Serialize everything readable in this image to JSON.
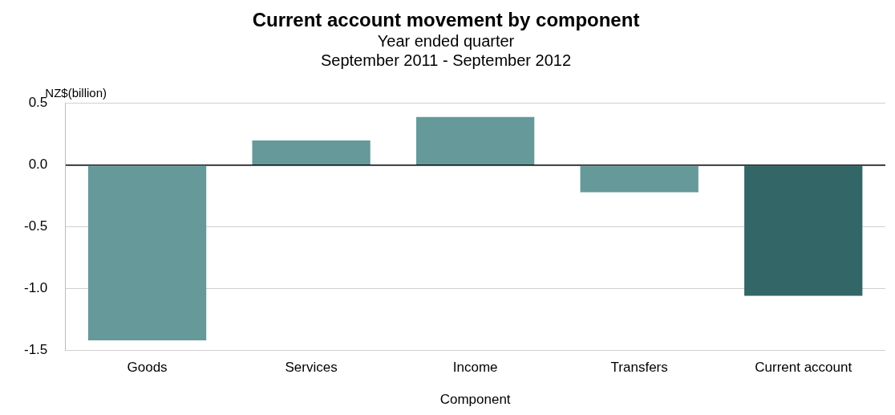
{
  "chart_data": {
    "type": "bar",
    "title": "Current account movement by component",
    "subtitle": "Year ended quarter\nSeptember 2011 - September 2012",
    "xlabel": "Component",
    "ylabel": "NZ$(billion)",
    "categories": [
      "Goods",
      "Services",
      "Income",
      "Transfers",
      "Current account"
    ],
    "values": [
      -1.42,
      0.2,
      0.39,
      -0.22,
      -1.06
    ],
    "colors": [
      "#669999",
      "#669999",
      "#669999",
      "#669999",
      "#336666"
    ],
    "ylim": [
      -1.5,
      0.5
    ],
    "yticks": [
      {
        "value": -1.5,
        "label": "-1.5"
      },
      {
        "value": -1,
        "label": "-1.0"
      },
      {
        "value": -0.5,
        "label": "-0.5"
      },
      {
        "value": 0,
        "label": "0.0"
      },
      {
        "value": 0.5,
        "label": "0.5"
      }
    ],
    "grid": "y",
    "legend": false
  }
}
